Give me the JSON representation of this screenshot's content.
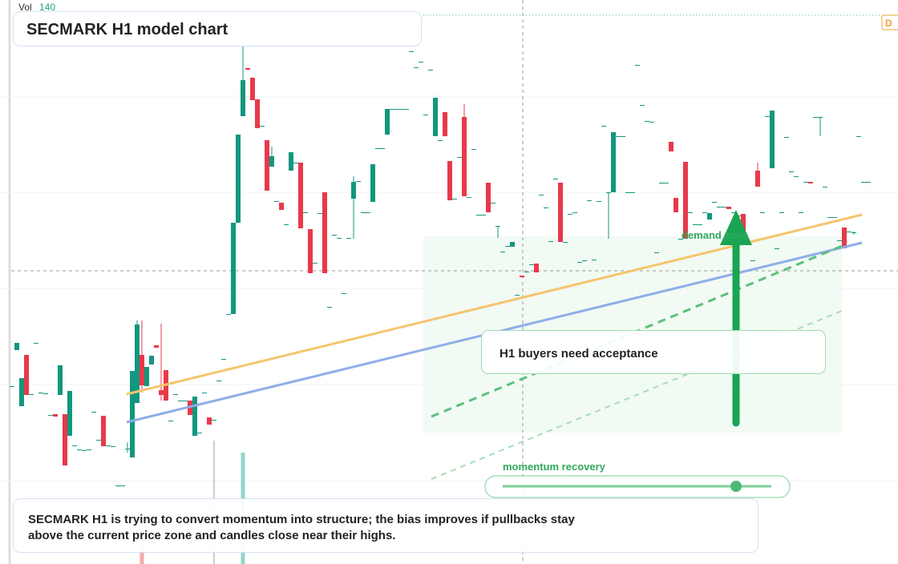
{
  "header": {
    "vol_label": "Vol",
    "vol_value": "140",
    "title": "SECMARK H1 model chart",
    "badge": "D"
  },
  "chart_data": {
    "type": "candlestick",
    "up_color": "#12977f",
    "down_color": "#e8394a",
    "xlim": [
      -2.5,
      184.17
    ],
    "ylim": [
      0,
      704
    ],
    "x": [
      0,
      1,
      2,
      3,
      4,
      5,
      6,
      7,
      8,
      9,
      10,
      11,
      12,
      13,
      14,
      15,
      16,
      17,
      18,
      19,
      20,
      21,
      22,
      23,
      24,
      25,
      26,
      27,
      28,
      29,
      30,
      31,
      32,
      33,
      34,
      35,
      36,
      37,
      38,
      39,
      40,
      41,
      42,
      43,
      44,
      45,
      46,
      47,
      48,
      49,
      50,
      51,
      52,
      53,
      54,
      55,
      56,
      57,
      58,
      59,
      60,
      61,
      62,
      63,
      64,
      65,
      66,
      67,
      68,
      69,
      70,
      71,
      72,
      73,
      74,
      75,
      76,
      77,
      78,
      79,
      80,
      81,
      82,
      83,
      84,
      85,
      86,
      87,
      88,
      89,
      90,
      91,
      92,
      93,
      94,
      95,
      96,
      97,
      98,
      99,
      100,
      101,
      102,
      103,
      104,
      105,
      106,
      107,
      108,
      109,
      110,
      111,
      112,
      113,
      114,
      115,
      116,
      117,
      118,
      119,
      120,
      121,
      122,
      123,
      124,
      125,
      126,
      127,
      128,
      129,
      130,
      131,
      132,
      133,
      134,
      135,
      136,
      137,
      138,
      139,
      140,
      141,
      142,
      143,
      144,
      145,
      146,
      147,
      148,
      149,
      150,
      151,
      152,
      153,
      154,
      155,
      156,
      157,
      158,
      159,
      160,
      161,
      162,
      163,
      164,
      165,
      166,
      167,
      168,
      169,
      170,
      171,
      172,
      173,
      174,
      175,
      176,
      177,
      178
    ],
    "open": [
      222,
      267,
      197,
      261,
      212,
      276,
      214,
      213,
      186,
      187,
      211,
      187,
      160,
      148,
      143,
      142,
      143,
      190,
      155,
      185,
      148,
      147,
      98,
      98,
      144,
      133,
      201,
      261,
      222,
      249,
      273,
      217,
      242,
      179,
      212,
      204,
      204,
      204,
      160,
      164,
      214,
      183,
      180,
      229,
      256,
      312,
      312,
      426,
      559,
      619,
      607,
      580,
      547,
      529,
      496,
      453,
      451,
      424,
      491,
      501,
      501,
      439,
      418,
      376,
      438,
      464,
      321,
      411,
      407,
      338,
      407,
      456,
      478,
      439,
      439,
      452,
      519,
      519,
      536,
      568,
      568,
      568,
      568,
      640,
      620,
      627,
      561,
      617,
      534,
      529,
      564,
      503,
      456,
      508,
      558,
      458,
      518,
      436,
      436,
      476,
      451,
      422,
      390,
      397,
      396,
      336,
      360,
      365,
      374,
      375,
      461,
      445,
      403,
      481,
      476,
      402,
      437,
      439,
      377,
      379,
      454,
      380,
      453,
      547,
      464,
      464,
      534,
      534,
      464,
      464,
      623,
      573,
      553,
      552,
      389,
      476,
      476,
      527,
      457,
      406,
      502,
      439,
      424,
      424,
      439,
      430,
      452,
      446,
      446,
      446,
      439,
      435,
      437,
      399,
      379,
      491,
      439,
      559,
      494,
      394,
      439,
      533,
      490,
      484,
      439,
      477,
      477,
      558,
      558,
      471,
      433,
      433,
      404,
      420,
      415,
      414,
      534,
      477,
      477
    ],
    "high": [
      222,
      276,
      232,
      261,
      212,
      276,
      214,
      213,
      186,
      187,
      248,
      187,
      216,
      148,
      143,
      142,
      143,
      190,
      155,
      185,
      148,
      147,
      98,
      98,
      152,
      241,
      304,
      304,
      246,
      260,
      273,
      300,
      242,
      179,
      212,
      204,
      204,
      204,
      209,
      164,
      214,
      183,
      180,
      229,
      256,
      312,
      426,
      536,
      646,
      619,
      607,
      580,
      547,
      529,
      521,
      453,
      451,
      424,
      514,
      501,
      501,
      439,
      418,
      376,
      438,
      464,
      321,
      411,
      407,
      338,
      407,
      484,
      478,
      439,
      439,
      499,
      519,
      519,
      568,
      568,
      568,
      568,
      568,
      640,
      620,
      627,
      561,
      617,
      582,
      529,
      564,
      503,
      456,
      508,
      574,
      458,
      518,
      436,
      436,
      476,
      451,
      422,
      390,
      397,
      402,
      336,
      360,
      365,
      374,
      375,
      461,
      445,
      403,
      481,
      476,
      402,
      437,
      439,
      377,
      379,
      454,
      380,
      453,
      547,
      464,
      539,
      534,
      534,
      464,
      464,
      623,
      573,
      553,
      552,
      389,
      476,
      476,
      527,
      457,
      406,
      502,
      439,
      424,
      424,
      439,
      438,
      452,
      446,
      446,
      446,
      439,
      435,
      437,
      399,
      379,
      501,
      439,
      559,
      566,
      394,
      439,
      533,
      490,
      484,
      439,
      477,
      477,
      558,
      558,
      471,
      433,
      433,
      404,
      420,
      415,
      415,
      534,
      477,
      477
    ],
    "low": [
      222,
      267,
      197,
      211,
      212,
      276,
      214,
      213,
      186,
      184,
      211,
      123,
      160,
      148,
      143,
      142,
      143,
      190,
      155,
      147,
      148,
      147,
      98,
      98,
      139,
      133,
      201,
      214,
      222,
      249,
      270,
      204,
      204,
      179,
      212,
      204,
      204,
      186,
      160,
      164,
      214,
      174,
      180,
      229,
      256,
      312,
      312,
      426,
      559,
      617,
      579,
      544,
      547,
      466,
      496,
      453,
      442,
      424,
      491,
      501,
      419,
      439,
      363,
      376,
      438,
      363,
      321,
      411,
      407,
      338,
      407,
      406,
      478,
      439,
      439,
      452,
      519,
      519,
      536,
      568,
      568,
      568,
      568,
      640,
      620,
      627,
      561,
      617,
      534,
      529,
      534,
      454,
      456,
      508,
      459,
      458,
      518,
      436,
      436,
      439,
      451,
      407,
      390,
      397,
      396,
      336,
      358,
      365,
      374,
      364,
      461,
      445,
      403,
      481,
      402,
      402,
      437,
      439,
      377,
      379,
      454,
      380,
      453,
      547,
      406,
      464,
      534,
      534,
      464,
      464,
      623,
      573,
      553,
      552,
      389,
      476,
      476,
      515,
      439,
      406,
      406,
      439,
      424,
      424,
      439,
      430,
      452,
      446,
      446,
      443,
      439,
      435,
      404,
      399,
      379,
      471,
      439,
      559,
      494,
      394,
      439,
      533,
      490,
      484,
      439,
      477,
      475,
      558,
      534,
      471,
      433,
      433,
      404,
      394,
      415,
      411,
      534,
      477,
      477
    ],
    "close": [
      222,
      276,
      232,
      211,
      212,
      276,
      214,
      213,
      186,
      184,
      248,
      123,
      216,
      148,
      143,
      142,
      143,
      190,
      155,
      147,
      148,
      147,
      98,
      98,
      144,
      241,
      299,
      223,
      246,
      260,
      270,
      211,
      204,
      179,
      212,
      204,
      204,
      186,
      209,
      164,
      214,
      174,
      180,
      229,
      256,
      312,
      426,
      536,
      604,
      617,
      579,
      544,
      547,
      466,
      509,
      453,
      442,
      424,
      514,
      501,
      419,
      439,
      363,
      376,
      438,
      363,
      321,
      411,
      407,
      338,
      407,
      477,
      478,
      439,
      439,
      499,
      519,
      519,
      568,
      568,
      568,
      568,
      568,
      640,
      620,
      627,
      561,
      617,
      582,
      529,
      534,
      454,
      456,
      508,
      459,
      458,
      518,
      436,
      436,
      439,
      451,
      422,
      390,
      397,
      402,
      336,
      358,
      365,
      374,
      364,
      461,
      445,
      403,
      481,
      402,
      402,
      437,
      439,
      377,
      379,
      454,
      380,
      453,
      547,
      464,
      539,
      534,
      534,
      464,
      464,
      623,
      573,
      553,
      552,
      389,
      476,
      476,
      515,
      439,
      406,
      406,
      439,
      424,
      424,
      439,
      438,
      452,
      446,
      446,
      443,
      439,
      435,
      404,
      399,
      379,
      471,
      439,
      559,
      566,
      394,
      439,
      533,
      490,
      484,
      439,
      477,
      475,
      558,
      558,
      471,
      433,
      433,
      404,
      394,
      415,
      414,
      534,
      477,
      477
    ],
    "volume": {
      "x": [
        27,
        42,
        48
      ],
      "values": [
        24,
        154,
        139
      ],
      "colors": [
        "#f5a9ae",
        "#9a9a9a",
        "#93d4c8"
      ]
    }
  },
  "annotations": {
    "zone": "demand zone",
    "callout": "H1 buyers need acceptance",
    "slider": "momentum recovery",
    "note": [
      "SECMARK H1 is trying to convert momentum into structure; the bias improves if pullbacks stay",
      "above the current price zone and candles close near their highs."
    ]
  }
}
